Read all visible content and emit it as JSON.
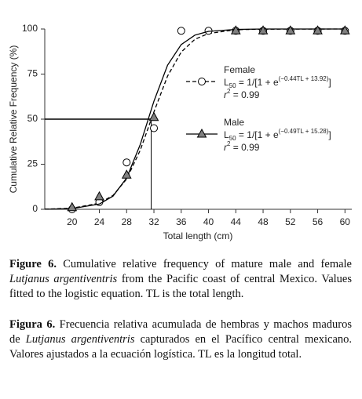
{
  "chart_data": {
    "type": "scatter",
    "x_label": "Total length (cm)",
    "y_label": "Cumulative Relative Frequency (%)",
    "xlim": [
      16,
      61
    ],
    "xticks": [
      20,
      24,
      28,
      32,
      36,
      40,
      44,
      48,
      52,
      56,
      60
    ],
    "ylim": [
      0,
      100
    ],
    "yticks": [
      0,
      25,
      50,
      75,
      100
    ],
    "reference_lines": [
      {
        "x": 31.6,
        "y": 50
      }
    ],
    "series": [
      {
        "name": "Female",
        "marker": "circle",
        "color": "#000000",
        "marker_fill": "#ffffff",
        "line_style": "dashed",
        "x": [
          20,
          24,
          28,
          32,
          36,
          40,
          44,
          48,
          52,
          56,
          60
        ],
        "values": [
          0,
          4,
          26,
          45,
          99,
          99,
          99,
          99,
          99,
          99,
          99
        ],
        "fit": {
          "x": [
            16,
            20,
            24,
            26,
            28,
            30,
            32,
            34,
            36,
            38,
            40,
            44,
            48,
            60
          ],
          "values": [
            0.1,
            0.6,
            3.4,
            7.7,
            16.8,
            32.8,
            54,
            73.9,
            87.2,
            94.3,
            97.5,
            99.6,
            99.9,
            100
          ]
        },
        "equation": [
          "L",
          "50",
          " = 1/[1 + e",
          "(−0.44TL + 13.92)",
          "]"
        ],
        "r2": [
          "r",
          "2",
          " = 0.99"
        ]
      },
      {
        "name": "Male",
        "marker": "triangle",
        "color": "#000000",
        "marker_fill": "#808080",
        "line_style": "solid",
        "x": [
          20,
          24,
          28,
          32,
          44,
          48,
          52,
          56,
          60
        ],
        "values": [
          1,
          7,
          19,
          51,
          99,
          99,
          99,
          99,
          99
        ],
        "fit": {
          "x": [
            16,
            20,
            24,
            26,
            28,
            30,
            32,
            34,
            36,
            38,
            40,
            44,
            48,
            60
          ],
          "values": [
            0.06,
            0.4,
            2.9,
            7.3,
            17.4,
            35.9,
            59.9,
            79.9,
            91.4,
            96.6,
            98.7,
            99.8,
            100,
            100
          ]
        },
        "equation": [
          "L",
          "50",
          " = 1/[1 + e",
          "(−0.49TL + 15.28)",
          "]"
        ],
        "r2": [
          "r",
          "2",
          " = 0.99"
        ]
      }
    ]
  },
  "caption": {
    "english": [
      "Figure 6.",
      " Cumulative relative frequency of mature male and female ",
      "Lutjanus argentiventris",
      " from the Pacific coast of central Mexico. Values fitted to the logistic equation. TL is the total length."
    ],
    "spanish": [
      "Figura 6.",
      " Frecuencia relativa acumulada de hembras y machos maduros de ",
      "Lutjanus argentiventris",
      " capturados en el Pacífico central mexicano. Valores ajustados a la ecuación logística. TL es la longitud total."
    ]
  }
}
